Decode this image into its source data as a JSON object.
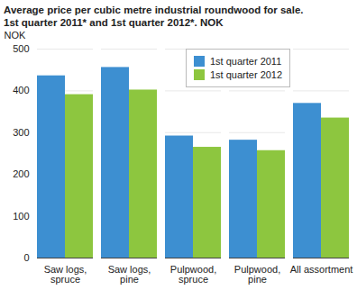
{
  "chart_data": {
    "type": "bar",
    "title": "Average price per cubic metre industrial roundwood for sale.",
    "subtitle": "1st quarter 2011* and 1st quarter 2012*. NOK",
    "y_label": "NOK",
    "categories": [
      "Saw logs, spruce",
      "Saw logs, pine",
      "Pulpwood, spruce",
      "Pulpwood, pine",
      "All assortment"
    ],
    "series": [
      {
        "name": "1st quarter 2011",
        "color": "#3d8fd1",
        "values": [
          436,
          456,
          292,
          282,
          370
        ]
      },
      {
        "name": "1st quarter 2012",
        "color": "#8dc63f",
        "values": [
          391,
          402,
          265,
          257,
          335
        ]
      }
    ],
    "ylim": [
      0,
      500
    ],
    "yticks": [
      0,
      100,
      200,
      300,
      400,
      500
    ],
    "grid": true,
    "legend": "top"
  }
}
